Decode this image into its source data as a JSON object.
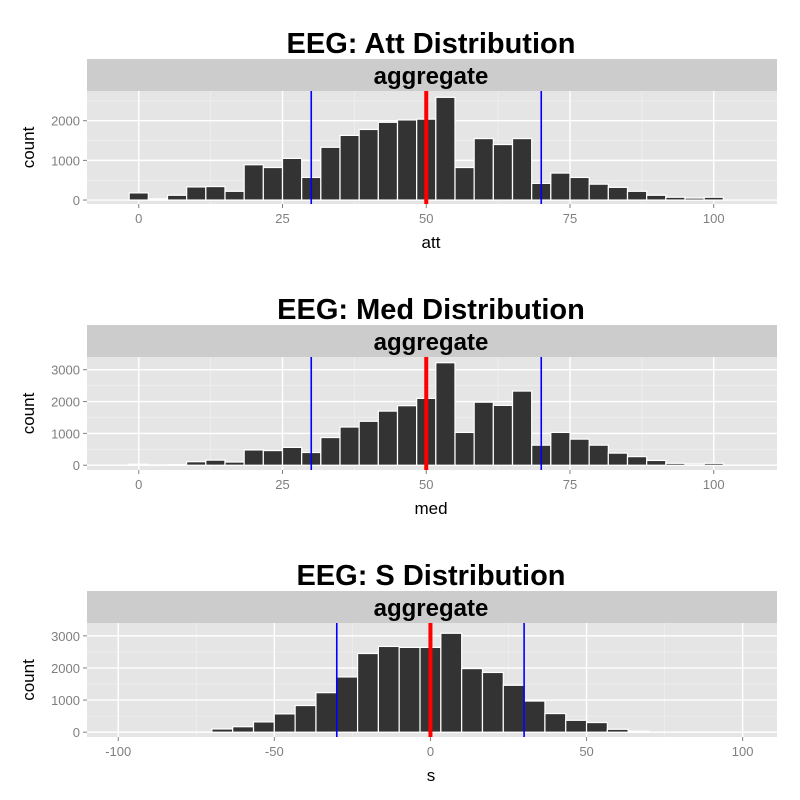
{
  "chart_data": [
    {
      "type": "bar",
      "title": "EEG: Att Distribution",
      "facet": "aggregate",
      "xlabel": "att",
      "ylabel": "count",
      "xlim": [
        -9,
        111
      ],
      "ylim": [
        -100,
        2750
      ],
      "xticks": [
        0,
        25,
        50,
        75,
        100
      ],
      "yticks": [
        0,
        1000,
        2000
      ],
      "bin_width": 3.33,
      "bins": [
        {
          "x": 0,
          "count": 180
        },
        {
          "x": 3.33,
          "count": 30
        },
        {
          "x": 6.67,
          "count": 120
        },
        {
          "x": 10,
          "count": 330
        },
        {
          "x": 13.33,
          "count": 340
        },
        {
          "x": 16.67,
          "count": 220
        },
        {
          "x": 20,
          "count": 890
        },
        {
          "x": 23.33,
          "count": 820
        },
        {
          "x": 26.67,
          "count": 1050
        },
        {
          "x": 30,
          "count": 570
        },
        {
          "x": 33.33,
          "count": 1330
        },
        {
          "x": 36.67,
          "count": 1630
        },
        {
          "x": 40,
          "count": 1780
        },
        {
          "x": 43.33,
          "count": 1960
        },
        {
          "x": 46.67,
          "count": 2020
        },
        {
          "x": 50,
          "count": 2040
        },
        {
          "x": 53.33,
          "count": 2590
        },
        {
          "x": 56.67,
          "count": 820
        },
        {
          "x": 60,
          "count": 1550
        },
        {
          "x": 63.33,
          "count": 1400
        },
        {
          "x": 66.67,
          "count": 1550
        },
        {
          "x": 70,
          "count": 420
        },
        {
          "x": 73.33,
          "count": 680
        },
        {
          "x": 76.67,
          "count": 570
        },
        {
          "x": 80,
          "count": 400
        },
        {
          "x": 83.33,
          "count": 320
        },
        {
          "x": 86.67,
          "count": 220
        },
        {
          "x": 90,
          "count": 120
        },
        {
          "x": 93.33,
          "count": 70
        },
        {
          "x": 96.67,
          "count": 50
        },
        {
          "x": 100,
          "count": 70
        }
      ],
      "reference_lines": [
        {
          "x": 30,
          "color": "#0000ff"
        },
        {
          "x": 50,
          "color": "#ff0000"
        },
        {
          "x": 70,
          "color": "#0000ff"
        }
      ]
    },
    {
      "type": "bar",
      "title": "EEG: Med Distribution",
      "facet": "aggregate",
      "xlabel": "med",
      "ylabel": "count",
      "xlim": [
        -9,
        111
      ],
      "ylim": [
        -150,
        3400
      ],
      "xticks": [
        0,
        25,
        50,
        75,
        100
      ],
      "yticks": [
        0,
        1000,
        2000,
        3000
      ],
      "bin_width": 3.33,
      "bins": [
        {
          "x": 0,
          "count": 30
        },
        {
          "x": 3.33,
          "count": 10
        },
        {
          "x": 6.67,
          "count": 20
        },
        {
          "x": 10,
          "count": 110
        },
        {
          "x": 13.33,
          "count": 160
        },
        {
          "x": 16.67,
          "count": 100
        },
        {
          "x": 20,
          "count": 480
        },
        {
          "x": 23.33,
          "count": 460
        },
        {
          "x": 26.67,
          "count": 560
        },
        {
          "x": 30,
          "count": 400
        },
        {
          "x": 33.33,
          "count": 870
        },
        {
          "x": 36.67,
          "count": 1200
        },
        {
          "x": 40,
          "count": 1380
        },
        {
          "x": 43.33,
          "count": 1700
        },
        {
          "x": 46.67,
          "count": 1870
        },
        {
          "x": 50,
          "count": 2100
        },
        {
          "x": 53.33,
          "count": 3220
        },
        {
          "x": 56.67,
          "count": 1030
        },
        {
          "x": 60,
          "count": 1980
        },
        {
          "x": 63.33,
          "count": 1880
        },
        {
          "x": 66.67,
          "count": 2330
        },
        {
          "x": 70,
          "count": 630
        },
        {
          "x": 73.33,
          "count": 1030
        },
        {
          "x": 76.67,
          "count": 820
        },
        {
          "x": 80,
          "count": 630
        },
        {
          "x": 83.33,
          "count": 380
        },
        {
          "x": 86.67,
          "count": 270
        },
        {
          "x": 90,
          "count": 150
        },
        {
          "x": 93.33,
          "count": 60
        },
        {
          "x": 96.67,
          "count": 40
        },
        {
          "x": 100,
          "count": 60
        }
      ],
      "reference_lines": [
        {
          "x": 30,
          "color": "#0000ff"
        },
        {
          "x": 50,
          "color": "#ff0000"
        },
        {
          "x": 70,
          "color": "#0000ff"
        }
      ]
    },
    {
      "type": "bar",
      "title": "EEG: S Distribution",
      "facet": "aggregate",
      "xlabel": "s",
      "ylabel": "count",
      "xlim": [
        -110,
        111
      ],
      "ylim": [
        -150,
        3400
      ],
      "xticks": [
        -100,
        -50,
        0,
        50,
        100
      ],
      "yticks": [
        0,
        1000,
        2000,
        3000
      ],
      "bin_width": 6.67,
      "bins": [
        {
          "x": -66.67,
          "count": 100
        },
        {
          "x": -60,
          "count": 170
        },
        {
          "x": -53.33,
          "count": 320
        },
        {
          "x": -46.67,
          "count": 570
        },
        {
          "x": -40,
          "count": 830
        },
        {
          "x": -33.33,
          "count": 1230
        },
        {
          "x": -26.67,
          "count": 1720
        },
        {
          "x": -20,
          "count": 2450
        },
        {
          "x": -13.33,
          "count": 2670
        },
        {
          "x": -6.67,
          "count": 2640
        },
        {
          "x": 0,
          "count": 2640
        },
        {
          "x": 6.67,
          "count": 3080
        },
        {
          "x": 13.33,
          "count": 1980
        },
        {
          "x": 20,
          "count": 1860
        },
        {
          "x": 26.67,
          "count": 1460
        },
        {
          "x": 33.33,
          "count": 970
        },
        {
          "x": 40,
          "count": 580
        },
        {
          "x": 46.67,
          "count": 370
        },
        {
          "x": 53.33,
          "count": 300
        },
        {
          "x": 60,
          "count": 90
        },
        {
          "x": 66.67,
          "count": 30
        }
      ],
      "reference_lines": [
        {
          "x": -30,
          "color": "#0000ff"
        },
        {
          "x": 0,
          "color": "#ff0000"
        },
        {
          "x": 30,
          "color": "#0000ff"
        }
      ]
    }
  ]
}
